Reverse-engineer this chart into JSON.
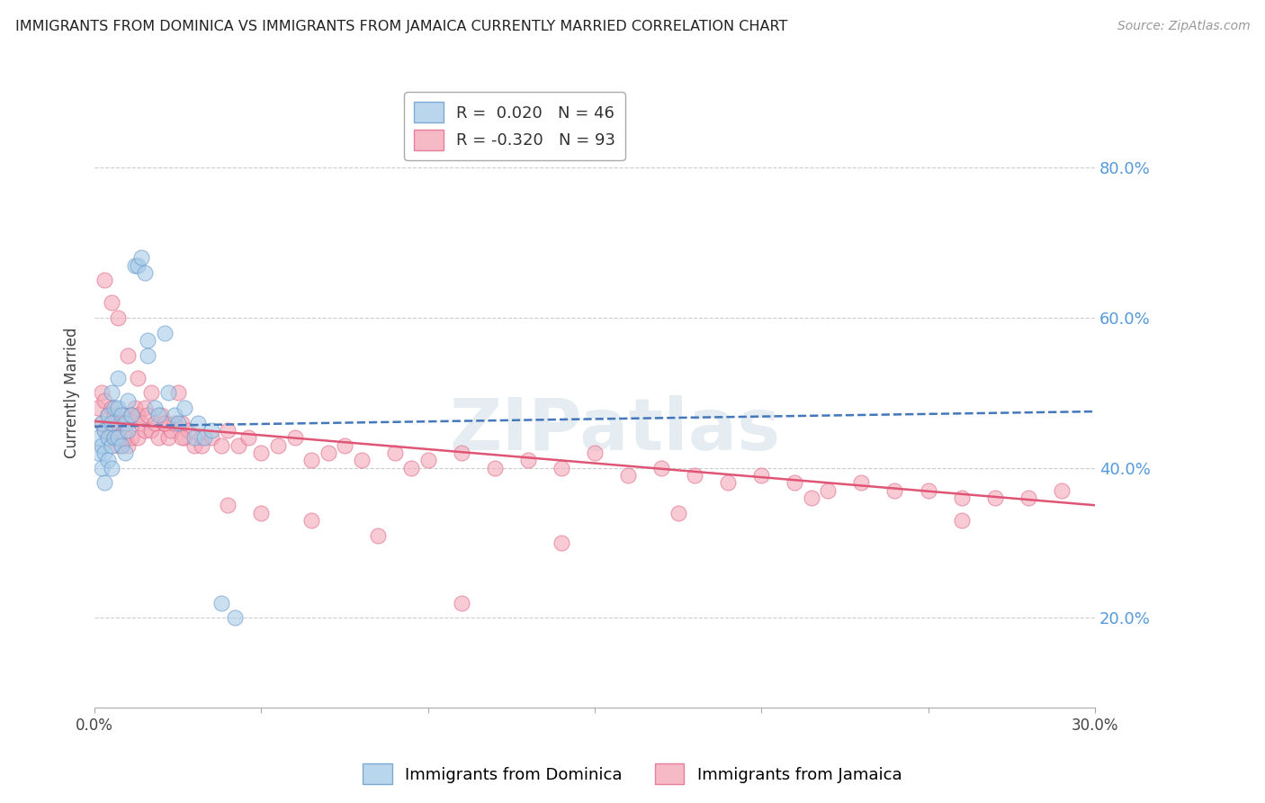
{
  "title": "IMMIGRANTS FROM DOMINICA VS IMMIGRANTS FROM JAMAICA CURRENTLY MARRIED CORRELATION CHART",
  "source": "Source: ZipAtlas.com",
  "ylabel": "Currently Married",
  "xlim": [
    0.0,
    0.3
  ],
  "ylim": [
    0.08,
    0.92
  ],
  "x_ticks": [
    0.0,
    0.05,
    0.1,
    0.15,
    0.2,
    0.25,
    0.3
  ],
  "x_tick_labels": [
    "0.0%",
    "",
    "",
    "",
    "",
    "",
    "30.0%"
  ],
  "right_ytick_values": [
    0.2,
    0.4,
    0.6,
    0.8
  ],
  "right_ytick_labels": [
    "20.0%",
    "40.0%",
    "60.0%",
    "80.0%"
  ],
  "dominica_color": "#a8cce8",
  "jamaica_color": "#f4a8b8",
  "dominica_edge": "#6699cc",
  "jamaica_edge": "#e06888",
  "blue_line_color": "#4477bb",
  "pink_line_color": "#e05575",
  "grid_color": "#cccccc",
  "right_axis_color": "#5599dd",
  "watermark": "ZIPatlas",
  "watermark_color": "#ccdde8",
  "dom_line_x0": 0.0,
  "dom_line_x1": 0.3,
  "dom_line_y0": 0.455,
  "dom_line_y1": 0.475,
  "jam_line_x0": 0.0,
  "jam_line_x1": 0.3,
  "jam_line_y0": 0.462,
  "jam_line_y1": 0.35,
  "dominica_x": [
    0.001,
    0.001,
    0.002,
    0.002,
    0.002,
    0.003,
    0.003,
    0.003,
    0.004,
    0.004,
    0.004,
    0.005,
    0.005,
    0.005,
    0.005,
    0.006,
    0.006,
    0.007,
    0.007,
    0.007,
    0.008,
    0.008,
    0.009,
    0.009,
    0.01,
    0.01,
    0.011,
    0.012,
    0.013,
    0.014,
    0.015,
    0.016,
    0.016,
    0.018,
    0.019,
    0.021,
    0.022,
    0.024,
    0.025,
    0.027,
    0.03,
    0.031,
    0.033,
    0.035,
    0.038,
    0.042
  ],
  "dominica_y": [
    0.44,
    0.42,
    0.46,
    0.43,
    0.4,
    0.45,
    0.42,
    0.38,
    0.47,
    0.44,
    0.41,
    0.5,
    0.46,
    0.43,
    0.4,
    0.48,
    0.44,
    0.52,
    0.48,
    0.44,
    0.47,
    0.43,
    0.46,
    0.42,
    0.49,
    0.45,
    0.47,
    0.67,
    0.67,
    0.68,
    0.66,
    0.57,
    0.55,
    0.48,
    0.47,
    0.58,
    0.5,
    0.47,
    0.46,
    0.48,
    0.44,
    0.46,
    0.44,
    0.45,
    0.22,
    0.2
  ],
  "jamaica_x": [
    0.001,
    0.002,
    0.002,
    0.003,
    0.003,
    0.004,
    0.004,
    0.005,
    0.005,
    0.006,
    0.006,
    0.007,
    0.007,
    0.008,
    0.008,
    0.009,
    0.009,
    0.01,
    0.01,
    0.011,
    0.011,
    0.012,
    0.013,
    0.013,
    0.014,
    0.015,
    0.015,
    0.016,
    0.017,
    0.018,
    0.019,
    0.02,
    0.021,
    0.022,
    0.023,
    0.024,
    0.025,
    0.026,
    0.027,
    0.028,
    0.03,
    0.032,
    0.035,
    0.038,
    0.04,
    0.043,
    0.046,
    0.05,
    0.055,
    0.06,
    0.065,
    0.07,
    0.075,
    0.08,
    0.09,
    0.095,
    0.1,
    0.11,
    0.12,
    0.13,
    0.14,
    0.15,
    0.16,
    0.17,
    0.18,
    0.19,
    0.2,
    0.21,
    0.22,
    0.23,
    0.24,
    0.25,
    0.26,
    0.27,
    0.28,
    0.29,
    0.003,
    0.005,
    0.007,
    0.01,
    0.013,
    0.017,
    0.021,
    0.026,
    0.032,
    0.04,
    0.05,
    0.065,
    0.085,
    0.11,
    0.14,
    0.175,
    0.215,
    0.26
  ],
  "jamaica_y": [
    0.48,
    0.5,
    0.46,
    0.49,
    0.45,
    0.47,
    0.44,
    0.48,
    0.45,
    0.47,
    0.44,
    0.46,
    0.43,
    0.46,
    0.43,
    0.47,
    0.44,
    0.46,
    0.43,
    0.47,
    0.44,
    0.48,
    0.47,
    0.44,
    0.46,
    0.48,
    0.45,
    0.47,
    0.45,
    0.46,
    0.44,
    0.47,
    0.46,
    0.44,
    0.45,
    0.46,
    0.5,
    0.46,
    0.44,
    0.45,
    0.43,
    0.44,
    0.44,
    0.43,
    0.45,
    0.43,
    0.44,
    0.42,
    0.43,
    0.44,
    0.41,
    0.42,
    0.43,
    0.41,
    0.42,
    0.4,
    0.41,
    0.42,
    0.4,
    0.41,
    0.4,
    0.42,
    0.39,
    0.4,
    0.39,
    0.38,
    0.39,
    0.38,
    0.37,
    0.38,
    0.37,
    0.37,
    0.36,
    0.36,
    0.36,
    0.37,
    0.65,
    0.62,
    0.6,
    0.55,
    0.52,
    0.5,
    0.46,
    0.44,
    0.43,
    0.35,
    0.34,
    0.33,
    0.31,
    0.22,
    0.3,
    0.34,
    0.36,
    0.33
  ]
}
